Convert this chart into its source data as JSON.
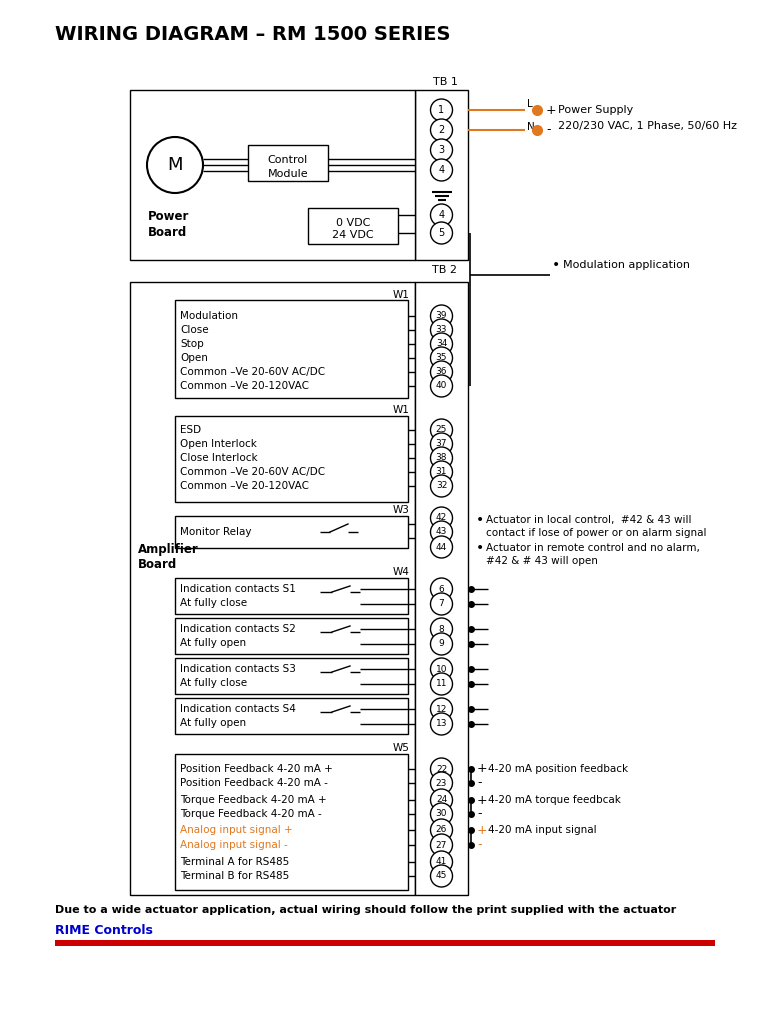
{
  "title": "WIRING DIAGRAM – RM 1500 SERIES",
  "bg_color": "#ffffff",
  "footer_text": "Due to a wide actuator application, actual wiring should follow the print supplied with the actuator",
  "footer_link": "RIME Controls",
  "footer_link_color": "#0000cc",
  "footer_bar_color": "#cc0000",
  "orange": "#e07820",
  "orange_dark": "#e07820",
  "tb1_label": "TB 1",
  "tb2_label": "TB 2",
  "motor_label": "M",
  "control_module_lines": [
    "Control",
    "Module"
  ],
  "power_board_lines": [
    "Power",
    "Board"
  ],
  "vdc_lines": [
    "0 VDC",
    "24 VDC"
  ],
  "w1_label": "W1",
  "w3_label": "W3",
  "w4_label": "W4",
  "w5_label": "W5",
  "sec1_labels": [
    "Modulation",
    "Close",
    "Stop",
    "Open",
    "Common –Ve 20-60V AC/DC",
    "Common –Ve 20-120VAC"
  ],
  "sec1_terms": [
    "39",
    "33",
    "34",
    "35",
    "36",
    "40"
  ],
  "sec2_labels": [
    "ESD",
    "Open Interlock",
    "Close Interlock",
    "Common –Ve 20-60V AC/DC",
    "Common –Ve 20-120VAC"
  ],
  "sec2_terms": [
    "25",
    "37",
    "38",
    "31",
    "32"
  ],
  "sec3_label": "Monitor Relay",
  "sec3_terms": [
    "42",
    "43",
    "44"
  ],
  "w4_data": [
    [
      "Indication contacts S1",
      "At fully close",
      "6",
      "7"
    ],
    [
      "Indication contacts S2",
      "At fully open",
      "8",
      "9"
    ],
    [
      "Indication contacts S3",
      "At fully close",
      "10",
      "11"
    ],
    [
      "Indication contacts S4",
      "At fully open",
      "12",
      "13"
    ]
  ],
  "w5_data": [
    [
      "Position Feedback 4-20 mA +",
      "22",
      "+",
      "4-20 mA position feedback",
      "black"
    ],
    [
      "Position Feedback 4-20 mA -",
      "23",
      "-",
      "",
      "black"
    ],
    [
      "Torque Feedback 4-20 mA +",
      "24",
      "+",
      "4-20 mA torque feedbcak",
      "black"
    ],
    [
      "Torque Feedback 4-20 mA -",
      "30",
      "-",
      "",
      "black"
    ],
    [
      "Analog input signal +",
      "26",
      "+",
      "4-20 mA input signal",
      "orange"
    ],
    [
      "Analog input signal -",
      "27",
      "-",
      "",
      "orange"
    ],
    [
      "Terminal A for RS485",
      "41",
      "",
      "",
      "black"
    ],
    [
      "Terminal B for RS485",
      "45",
      "",
      "",
      "black"
    ]
  ],
  "bullet1": "Modulation application",
  "bullet2a": "Actuator in local control,  #42 & 43 will",
  "bullet2b": "contact if lose of power or on alarm signal",
  "bullet3a": "Actuator in remote control and no alarm,",
  "bullet3b": "#42 & # 43 will open",
  "ps_text1": "Power Supply",
  "ps_text2": "220/230 VAC, 1 Phase, 50/60 Hz",
  "fb_text1": "4-20 mA position feedback",
  "fb_text2": "4-20 mA torque feedbcak",
  "fb_text3": "4-20 mA input signal"
}
